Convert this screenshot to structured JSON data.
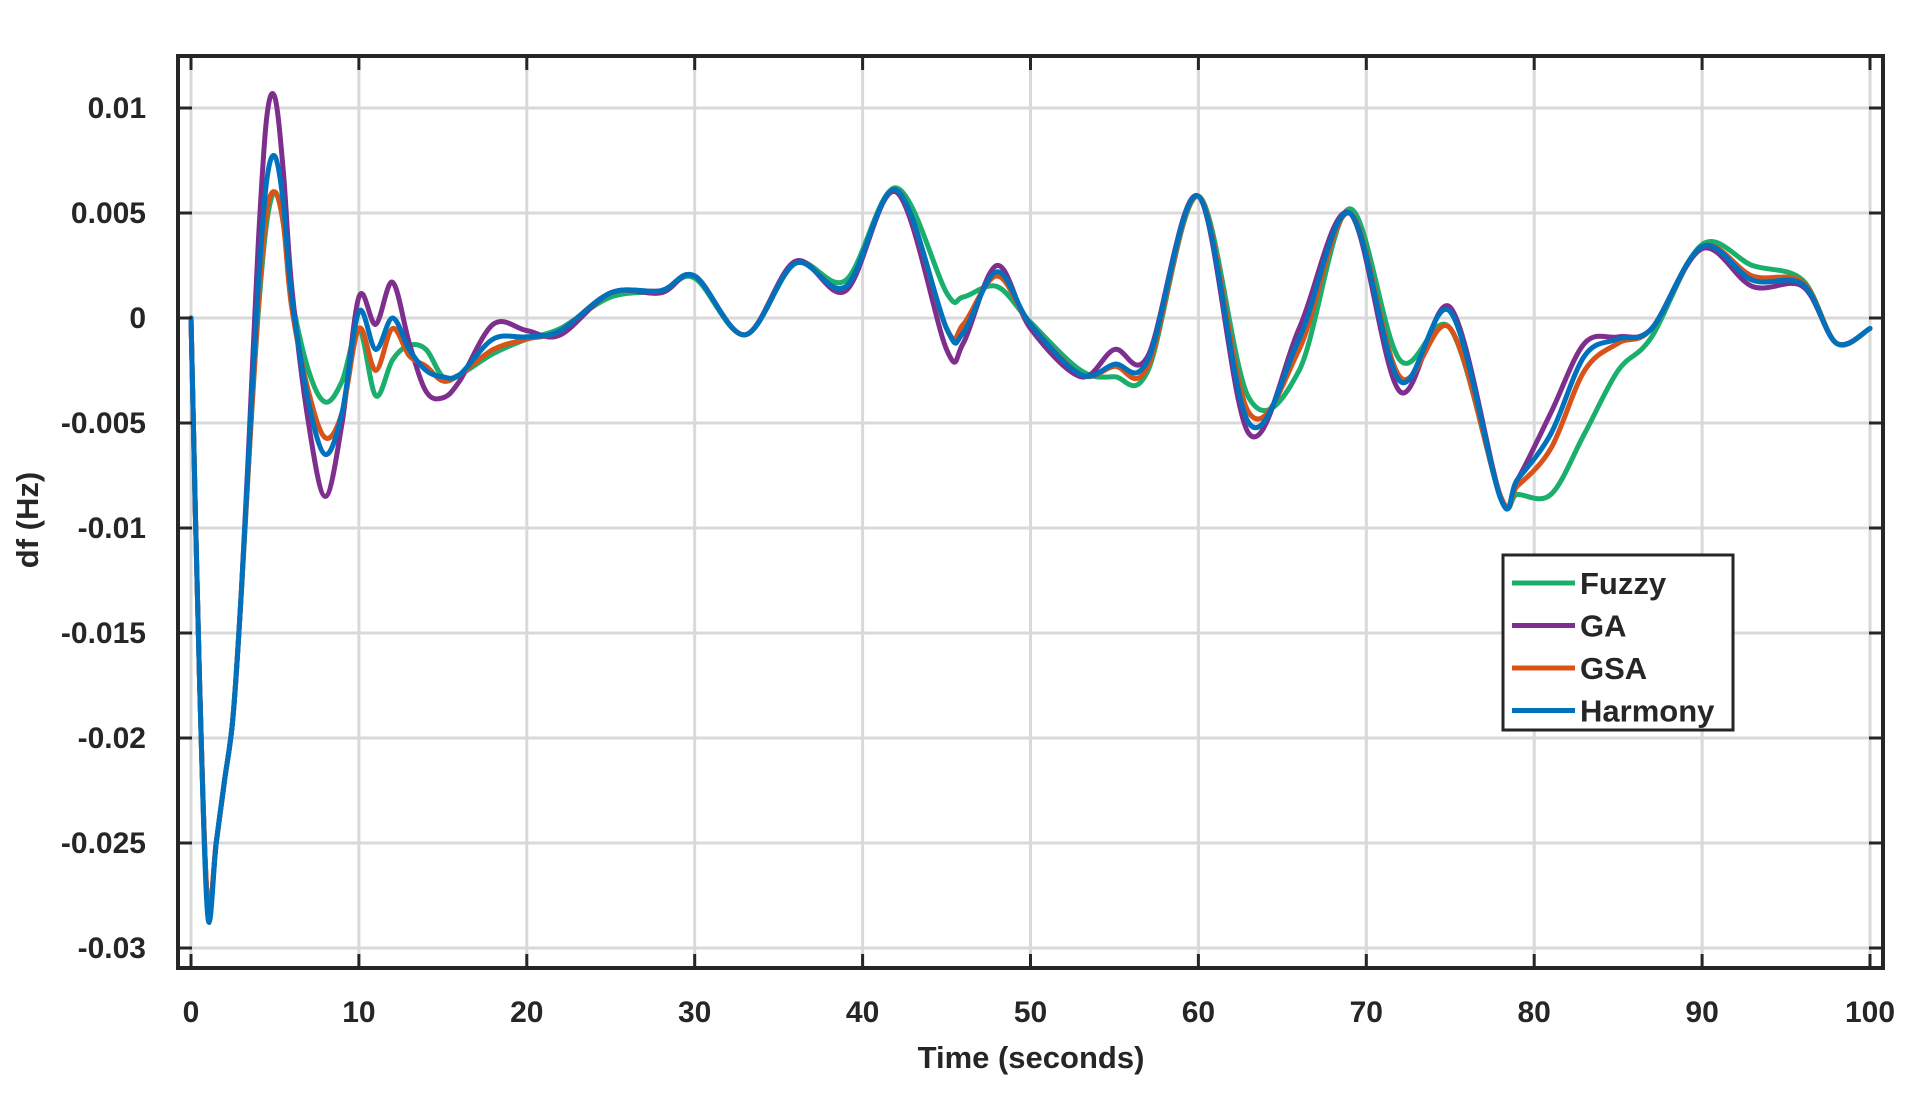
{
  "chart_data": {
    "type": "line",
    "title": "",
    "xlabel": "Time (seconds)",
    "ylabel": "df (Hz)",
    "xlim": [
      0,
      100
    ],
    "ylim": [
      -0.03,
      0.0125
    ],
    "xticks": [
      0,
      10,
      20,
      30,
      40,
      50,
      60,
      70,
      80,
      90,
      100
    ],
    "xtick_labels": [
      "0",
      "10",
      "20",
      "30",
      "40",
      "50",
      "60",
      "70",
      "80",
      "90",
      "100"
    ],
    "yticks": [
      0.01,
      0.005,
      0,
      -0.005,
      -0.01,
      -0.015,
      -0.02,
      -0.025,
      -0.03
    ],
    "ytick_labels": [
      "0.01",
      "0.005",
      "0",
      "-0.005",
      "-0.01",
      "-0.015",
      "-0.02",
      "-0.025",
      "-0.03"
    ],
    "grid": true,
    "legend_position": "center-right",
    "series": [
      {
        "name": "Fuzzy",
        "color": "#1aaf6c",
        "x": [
          0,
          0.5,
          1,
          1.5,
          2,
          2.5,
          3,
          3.5,
          4,
          4.5,
          5,
          5.5,
          6,
          7,
          8,
          9,
          10,
          11,
          12,
          13,
          14,
          15,
          16,
          18,
          20,
          22,
          25,
          28,
          30,
          33,
          36,
          39,
          42,
          45,
          46,
          48,
          50,
          53,
          55,
          57,
          60,
          63,
          66,
          69,
          72,
          75,
          78,
          79,
          81,
          83,
          85,
          87,
          90,
          93,
          96,
          98,
          100
        ],
        "y": [
          0,
          -0.017,
          -0.028,
          -0.025,
          -0.022,
          -0.019,
          -0.013,
          -0.006,
          0.0002,
          0.0045,
          0.006,
          0.0045,
          0.001,
          -0.0025,
          -0.004,
          -0.003,
          -0.0005,
          -0.0037,
          -0.002,
          -0.0013,
          -0.0015,
          -0.0028,
          -0.0027,
          -0.0017,
          -0.001,
          -0.0005,
          0.001,
          0.0013,
          0.0019,
          -0.0008,
          0.0026,
          0.0018,
          0.0062,
          0.0012,
          0.001,
          0.0015,
          -0.0002,
          -0.0025,
          -0.0028,
          -0.0025,
          0.0058,
          -0.0038,
          -0.0025,
          0.0052,
          -0.002,
          -0.0005,
          -0.0085,
          -0.0084,
          -0.0084,
          -0.0055,
          -0.0025,
          -0.0009,
          0.0035,
          0.0025,
          0.0018,
          -0.0012,
          -0.0005
        ]
      },
      {
        "name": "GA",
        "color": "#7e2f8e",
        "x": [
          0,
          0.5,
          1,
          1.5,
          2,
          2.5,
          3,
          3.5,
          4,
          4.5,
          5,
          5.5,
          6,
          7,
          8,
          9,
          10,
          11,
          12,
          13,
          14,
          15,
          16,
          18,
          20,
          22,
          25,
          28,
          30,
          33,
          36,
          39,
          42,
          45,
          46,
          48,
          50,
          53,
          55,
          57,
          60,
          63,
          66,
          69,
          72,
          75,
          78,
          79,
          81,
          83,
          85,
          87,
          90,
          93,
          96,
          98,
          100
        ],
        "y": [
          0,
          -0.017,
          -0.028,
          -0.025,
          -0.022,
          -0.019,
          -0.013,
          -0.005,
          0.0035,
          0.0095,
          0.0105,
          0.007,
          0.0015,
          -0.005,
          -0.0085,
          -0.005,
          0.001,
          -0.0003,
          0.0017,
          -0.0012,
          -0.0035,
          -0.0038,
          -0.003,
          -0.0003,
          -0.0006,
          -0.0008,
          0.0012,
          0.0012,
          0.002,
          -0.0008,
          0.0027,
          0.0013,
          0.006,
          -0.0015,
          -0.0012,
          0.0025,
          -0.0005,
          -0.0028,
          -0.0015,
          -0.0018,
          0.0058,
          -0.0055,
          -0.0005,
          0.005,
          -0.0035,
          0.0005,
          -0.0085,
          -0.0077,
          -0.0045,
          -0.0012,
          -0.0009,
          -0.0005,
          0.0033,
          0.0015,
          0.0015,
          -0.0012,
          -0.0005
        ]
      },
      {
        "name": "GSA",
        "color": "#d95319",
        "x": [
          0,
          0.5,
          1,
          1.5,
          2,
          2.5,
          3,
          3.5,
          4,
          4.5,
          5,
          5.5,
          6,
          7,
          8,
          9,
          10,
          11,
          12,
          13,
          14,
          15,
          16,
          18,
          20,
          22,
          25,
          28,
          30,
          33,
          36,
          39,
          42,
          45,
          46,
          48,
          50,
          53,
          55,
          57,
          60,
          63,
          66,
          69,
          72,
          75,
          78,
          79,
          81,
          83,
          85,
          87,
          90,
          93,
          96,
          98,
          100
        ],
        "y": [
          0,
          -0.017,
          -0.028,
          -0.025,
          -0.022,
          -0.019,
          -0.013,
          -0.006,
          0.0005,
          0.005,
          0.006,
          0.0045,
          0.0005,
          -0.0035,
          -0.0057,
          -0.0045,
          -0.0005,
          -0.0025,
          -0.0005,
          -0.0018,
          -0.0023,
          -0.003,
          -0.0027,
          -0.0015,
          -0.001,
          -0.0006,
          0.0012,
          0.0013,
          0.002,
          -0.0008,
          0.0026,
          0.0015,
          0.0061,
          -0.0005,
          -0.0003,
          0.002,
          -0.0003,
          -0.0027,
          -0.0023,
          -0.0023,
          0.0058,
          -0.0045,
          -0.0015,
          0.005,
          -0.0028,
          -0.0005,
          -0.0085,
          -0.008,
          -0.0062,
          -0.0025,
          -0.0012,
          -0.0005,
          0.0034,
          0.002,
          0.0017,
          -0.0012,
          -0.0005
        ]
      },
      {
        "name": "Harmony",
        "color": "#0072bd",
        "x": [
          0,
          0.5,
          1,
          1.5,
          2,
          2.5,
          3,
          3.5,
          4,
          4.5,
          5,
          5.5,
          6,
          7,
          8,
          9,
          10,
          11,
          12,
          13,
          14,
          15,
          16,
          18,
          20,
          22,
          25,
          28,
          30,
          33,
          36,
          39,
          42,
          45,
          46,
          48,
          50,
          53,
          55,
          57,
          60,
          63,
          66,
          69,
          72,
          75,
          78,
          79,
          81,
          83,
          85,
          87,
          90,
          93,
          96,
          98,
          100
        ],
        "y": [
          0,
          -0.017,
          -0.0285,
          -0.025,
          -0.022,
          -0.019,
          -0.013,
          -0.0055,
          0.0015,
          0.0065,
          0.0077,
          0.0055,
          0.001,
          -0.004,
          -0.0065,
          -0.0045,
          0.0003,
          -0.0015,
          0,
          -0.0015,
          -0.0025,
          -0.0028,
          -0.0027,
          -0.001,
          -0.0009,
          -0.0006,
          0.0012,
          0.0013,
          0.002,
          -0.0008,
          0.0026,
          0.0015,
          0.0061,
          -0.0005,
          -0.0007,
          0.0022,
          -0.0003,
          -0.0027,
          -0.0022,
          -0.002,
          0.0058,
          -0.005,
          -0.001,
          0.005,
          -0.003,
          0.0003,
          -0.0086,
          -0.0077,
          -0.0055,
          -0.0018,
          -0.001,
          -0.0005,
          0.0034,
          0.0018,
          0.0016,
          -0.0012,
          -0.0005
        ]
      }
    ]
  }
}
